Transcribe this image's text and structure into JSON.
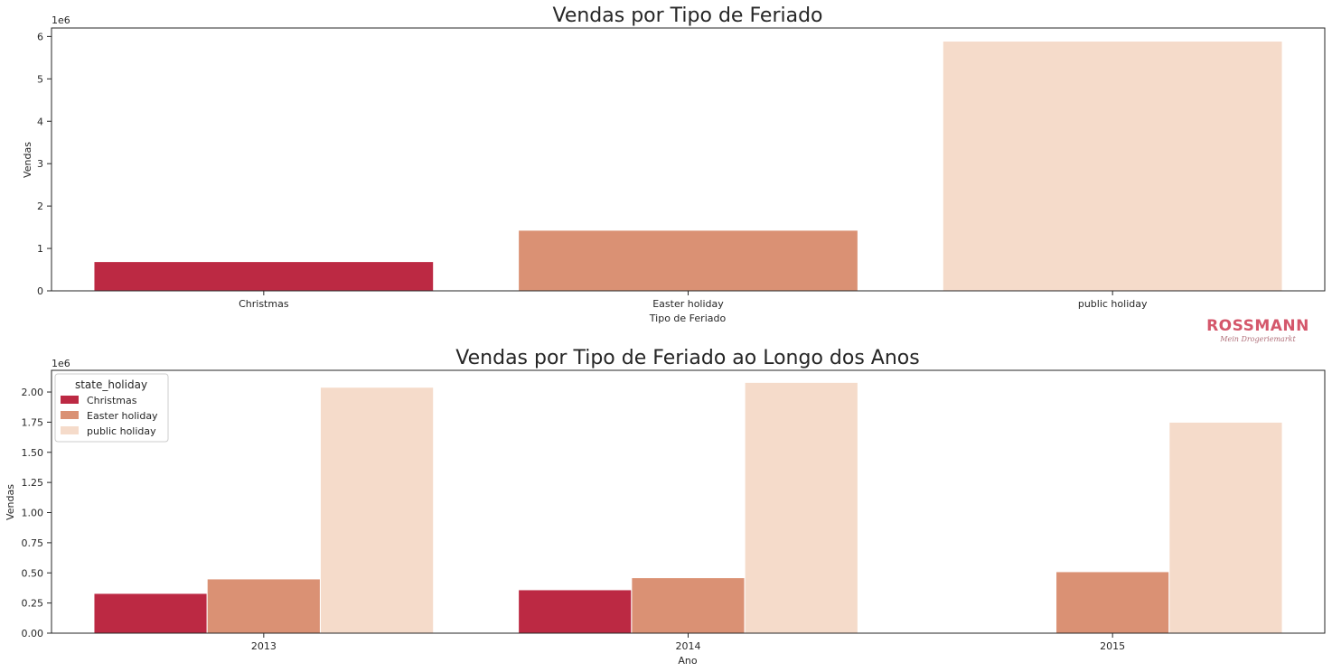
{
  "colors": {
    "Christmas": "#bc2943",
    "Easter holiday": "#da9174",
    "public holiday": "#f5dbca"
  },
  "logo": {
    "text": "ROSSMANN",
    "tagline": "Mein Drogeriemarkt"
  },
  "chart_data": [
    {
      "type": "bar",
      "title": "Vendas por Tipo de Feriado",
      "xlabel": "Tipo de Feriado",
      "ylabel": "Vendas",
      "offset_label": "1e6",
      "categories": [
        "Christmas",
        "Easter holiday",
        "public holiday"
      ],
      "values": [
        0.69,
        1.43,
        5.89
      ],
      "ylim": [
        0,
        6.2
      ],
      "yticks": [
        0,
        1,
        2,
        3,
        4,
        5,
        6
      ],
      "ytick_labels": [
        "0",
        "1",
        "2",
        "3",
        "4",
        "5",
        "6"
      ],
      "scale": "values in units of 1e6"
    },
    {
      "type": "bar",
      "title": "Vendas por Tipo de Feriado ao Longo dos Anos",
      "xlabel": "Ano",
      "ylabel": "Vendas",
      "offset_label": "1e6",
      "categories": [
        "2013",
        "2014",
        "2015"
      ],
      "legend_title": "state_holiday",
      "legend_position": "upper-left",
      "series": [
        {
          "name": "Christmas",
          "values": [
            0.33,
            0.36,
            null
          ]
        },
        {
          "name": "Easter holiday",
          "values": [
            0.45,
            0.46,
            0.51
          ]
        },
        {
          "name": "public holiday",
          "values": [
            2.04,
            2.08,
            1.75
          ]
        }
      ],
      "ylim": [
        0,
        2.18
      ],
      "yticks": [
        0,
        0.25,
        0.5,
        0.75,
        1.0,
        1.25,
        1.5,
        1.75,
        2.0
      ],
      "ytick_labels": [
        "0.00",
        "0.25",
        "0.50",
        "0.75",
        "1.00",
        "1.25",
        "1.50",
        "1.75",
        "2.00"
      ],
      "scale": "values in units of 1e6"
    }
  ]
}
